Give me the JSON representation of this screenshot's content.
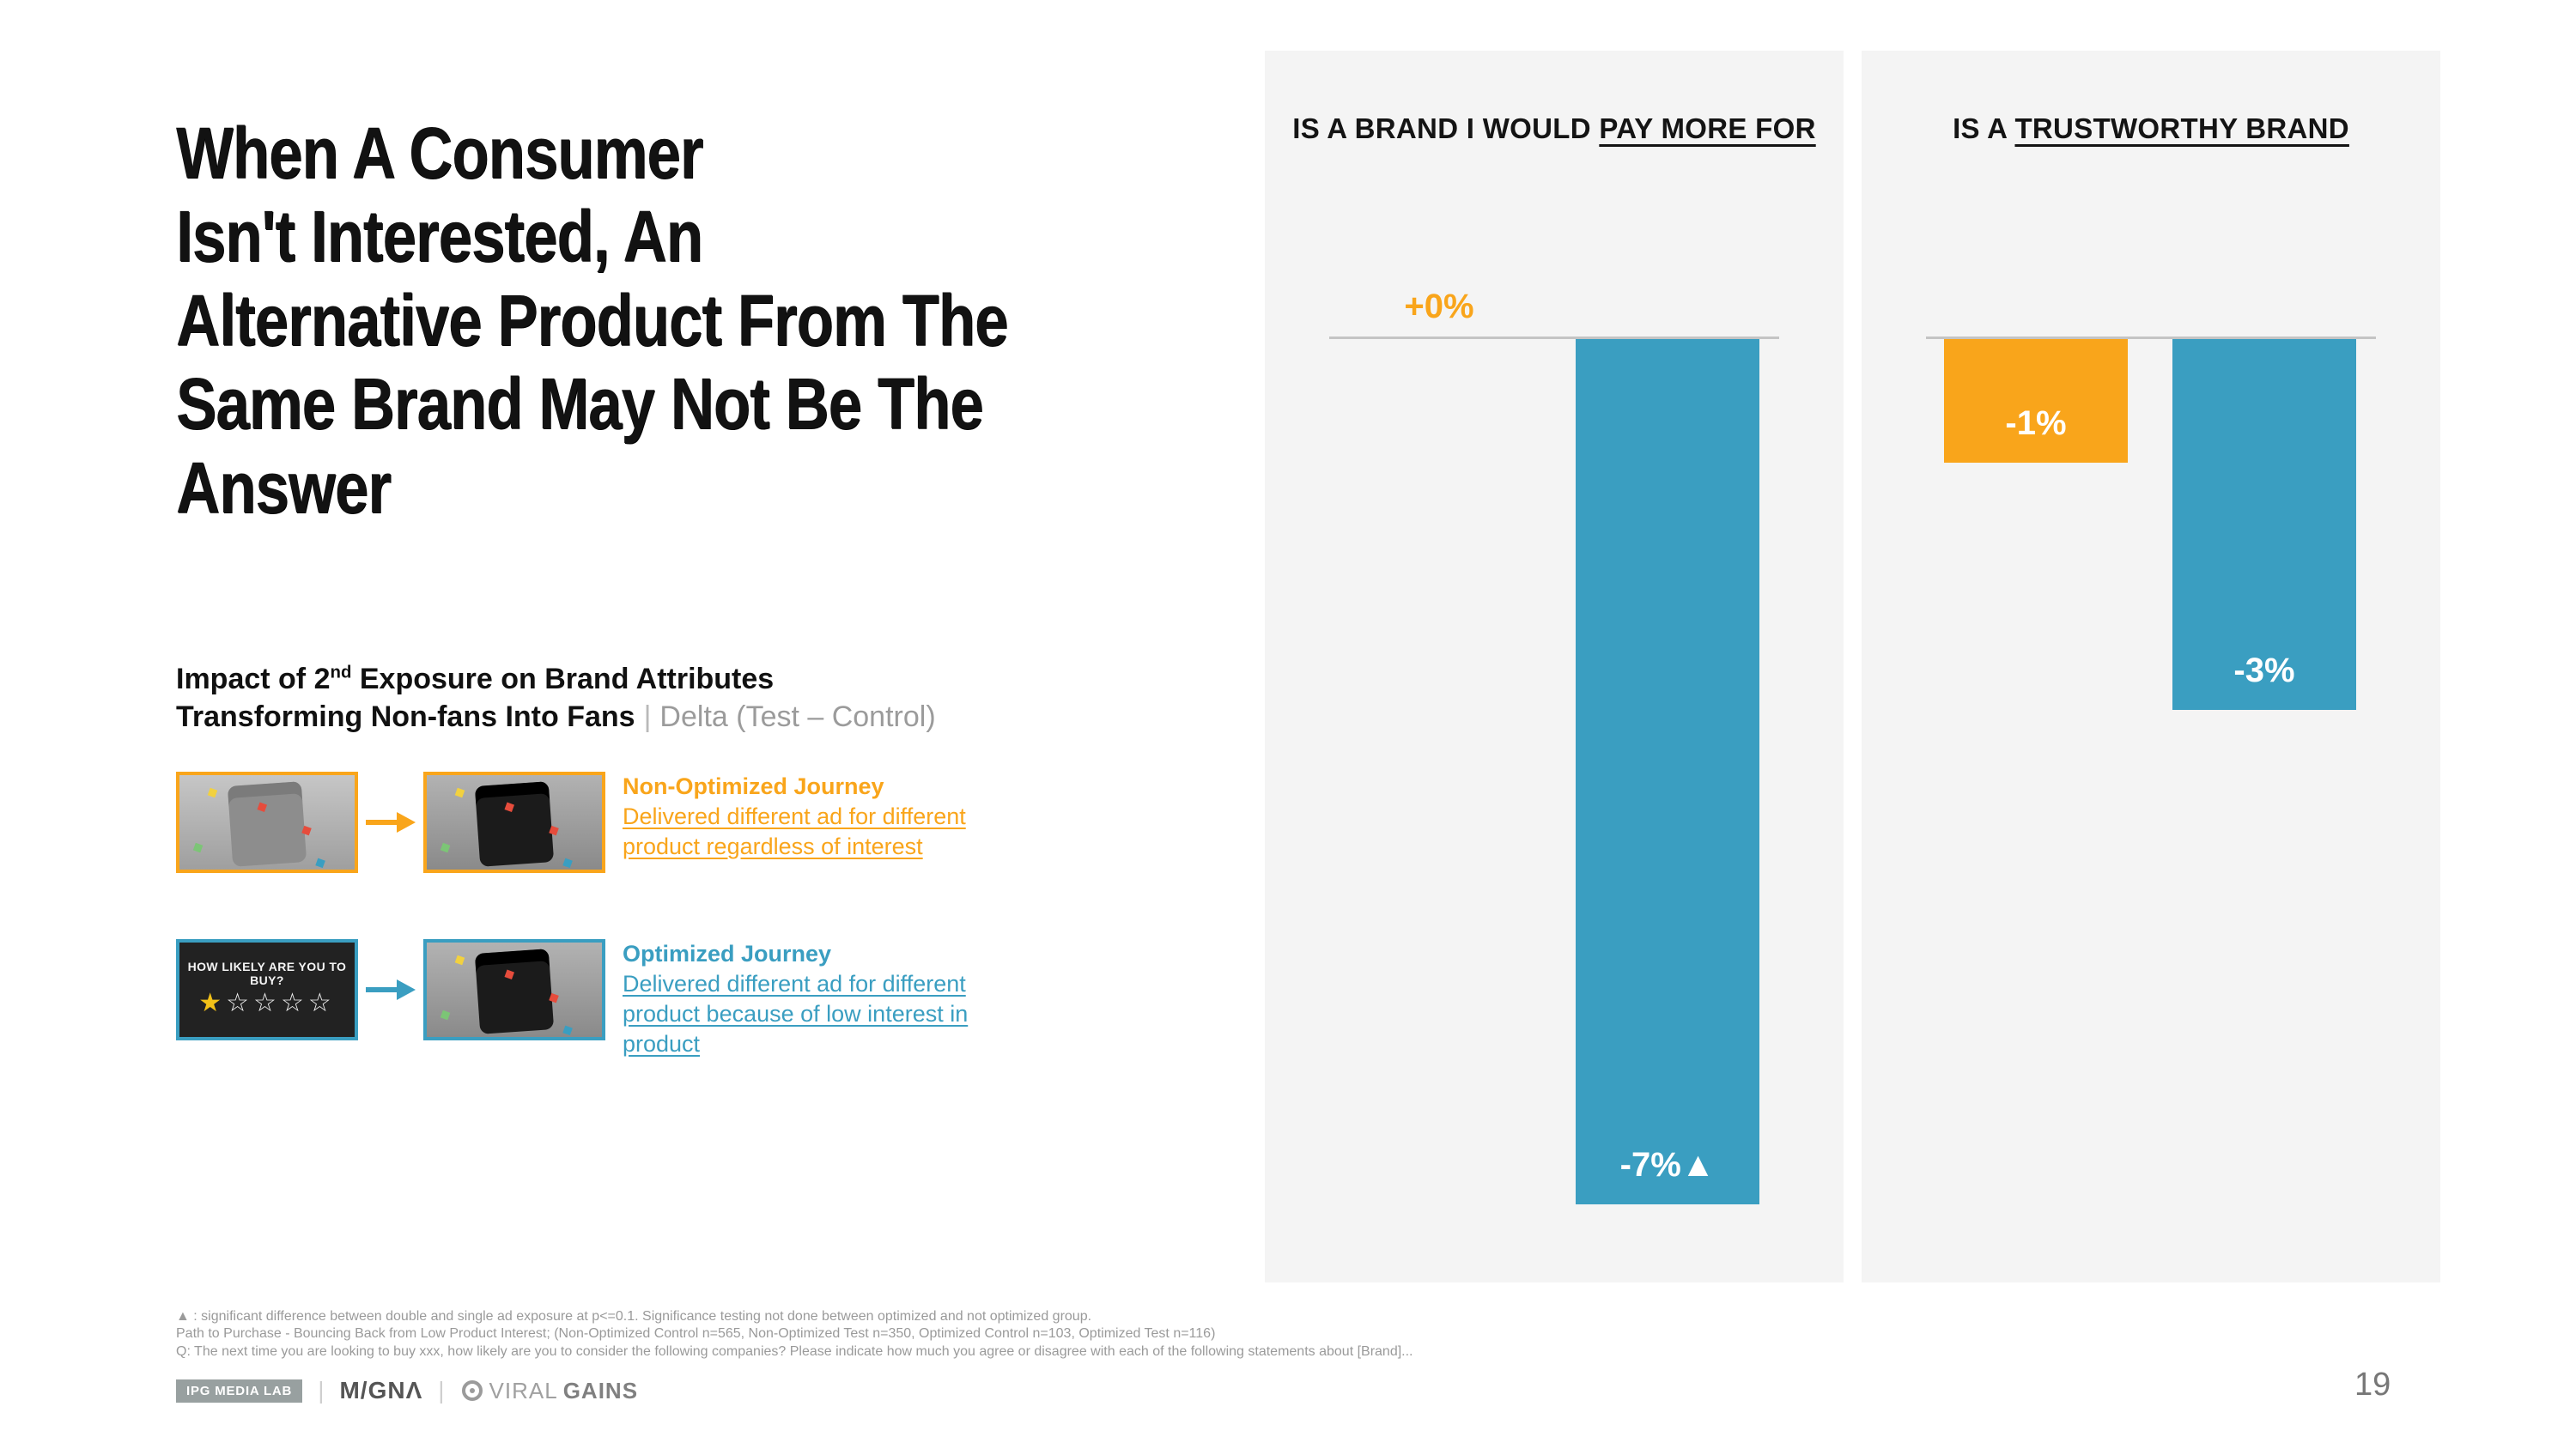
{
  "slide": {
    "title": "When A Consumer\nIsn't Interested, An\nAlternative Product From The\nSame Brand May Not Be The\nAnswer",
    "subtitle": {
      "part1": "Impact of 2",
      "sup": "nd",
      "part2": " Exposure on Brand Attributes",
      "line2_bold": "Transforming Non-fans Into Fans",
      "separator": "|",
      "line2_gray": "Delta (Test – Control)"
    },
    "page_number": "19"
  },
  "journeys": [
    {
      "title": "Non-Optimized Journey",
      "description": "Delivered different ad for different product regardless of interest",
      "color": "#F9A51B"
    },
    {
      "title": "Optimized Journey",
      "description": "Delivered different ad for different product because of low interest in product",
      "color": "#3A9EC1",
      "poll_question": "HOW LIKELY ARE YOU TO BUY?",
      "stars_filled": "★",
      "stars_empty": "☆☆☆☆"
    }
  ],
  "chart_data": [
    {
      "type": "bar",
      "title": "IS A BRAND I WOULD PAY MORE FOR",
      "title_prefix": "IS A BRAND I WOULD ",
      "title_underline": "PAY MORE FOR",
      "categories": [
        "Non-Optimized Journey",
        "Optimized Journey"
      ],
      "values": [
        0,
        -7
      ],
      "labels": [
        "+0%",
        "-7%▲"
      ],
      "colors": [
        "#F9A51B",
        "#3A9EC1"
      ],
      "ylabel": "Delta (Test – Control), %",
      "ylim": [
        -8,
        1
      ],
      "baseline": 0,
      "grid": false,
      "legend": "none"
    },
    {
      "type": "bar",
      "title": "IS A TRUSTWORTHY BRAND",
      "title_prefix": "IS A ",
      "title_underline": "TRUSTWORTHY BRAND",
      "categories": [
        "Non-Optimized Journey",
        "Optimized Journey"
      ],
      "values": [
        -1,
        -3
      ],
      "labels": [
        "-1%",
        "-3%"
      ],
      "colors": [
        "#F9A51B",
        "#3A9EC1"
      ],
      "ylabel": "Delta (Test – Control), %",
      "ylim": [
        -8,
        1
      ],
      "baseline": 0,
      "grid": false,
      "legend": "none"
    }
  ],
  "footnotes": {
    "line1": "▲ : significant difference between double and single ad exposure at p<=0.1. Significance testing not done between optimized and not optimized group.",
    "line2": "Path to Purchase  - Bouncing Back from Low Product Interest; (Non-Optimized Control n=565, Non-Optimized Test n=350, Optimized Control n=103, Optimized Test n=116)",
    "line3": "Q: The next time you are looking to buy xxx, how likely are you to consider the following companies? Please indicate how much you agree or disagree with each of the following statements about [Brand]..."
  },
  "footer": {
    "ipg": "IPG MEDIA LAB",
    "sep": "|",
    "magna": "M/GNΛ",
    "viral": "VIRAL",
    "gains": "GAINS"
  }
}
